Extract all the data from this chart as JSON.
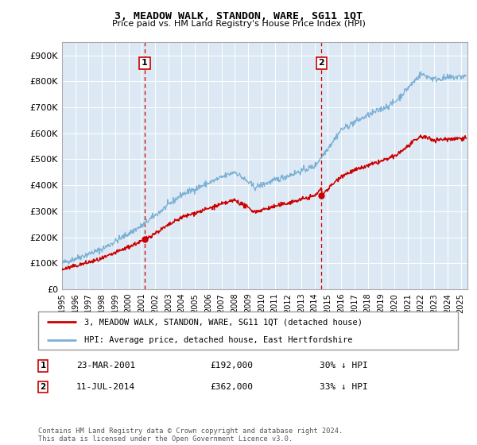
{
  "title": "3, MEADOW WALK, STANDON, WARE, SG11 1QT",
  "subtitle": "Price paid vs. HM Land Registry's House Price Index (HPI)",
  "background_color": "#dce9f5",
  "plot_bg_color": "#dce9f5",
  "ylim": [
    0,
    950000
  ],
  "yticks": [
    0,
    100000,
    200000,
    300000,
    400000,
    500000,
    600000,
    700000,
    800000,
    900000
  ],
  "ytick_labels": [
    "£0",
    "£100K",
    "£200K",
    "£300K",
    "£400K",
    "£500K",
    "£600K",
    "£700K",
    "£800K",
    "£900K"
  ],
  "red_line_color": "#cc0000",
  "blue_line_color": "#7ab0d4",
  "marker1_x": 2001.22,
  "marker1_y": 192000,
  "marker1_label": "1",
  "marker1_date": "23-MAR-2001",
  "marker1_price": "£192,000",
  "marker1_hpi": "30% ↓ HPI",
  "marker2_x": 2014.52,
  "marker2_y": 362000,
  "marker2_label": "2",
  "marker2_date": "11-JUL-2014",
  "marker2_price": "£362,000",
  "marker2_hpi": "33% ↓ HPI",
  "legend_line1": "3, MEADOW WALK, STANDON, WARE, SG11 1QT (detached house)",
  "legend_line2": "HPI: Average price, detached house, East Hertfordshire",
  "footnote": "Contains HM Land Registry data © Crown copyright and database right 2024.\nThis data is licensed under the Open Government Licence v3.0.",
  "xmin": 1995,
  "xmax": 2025.5
}
